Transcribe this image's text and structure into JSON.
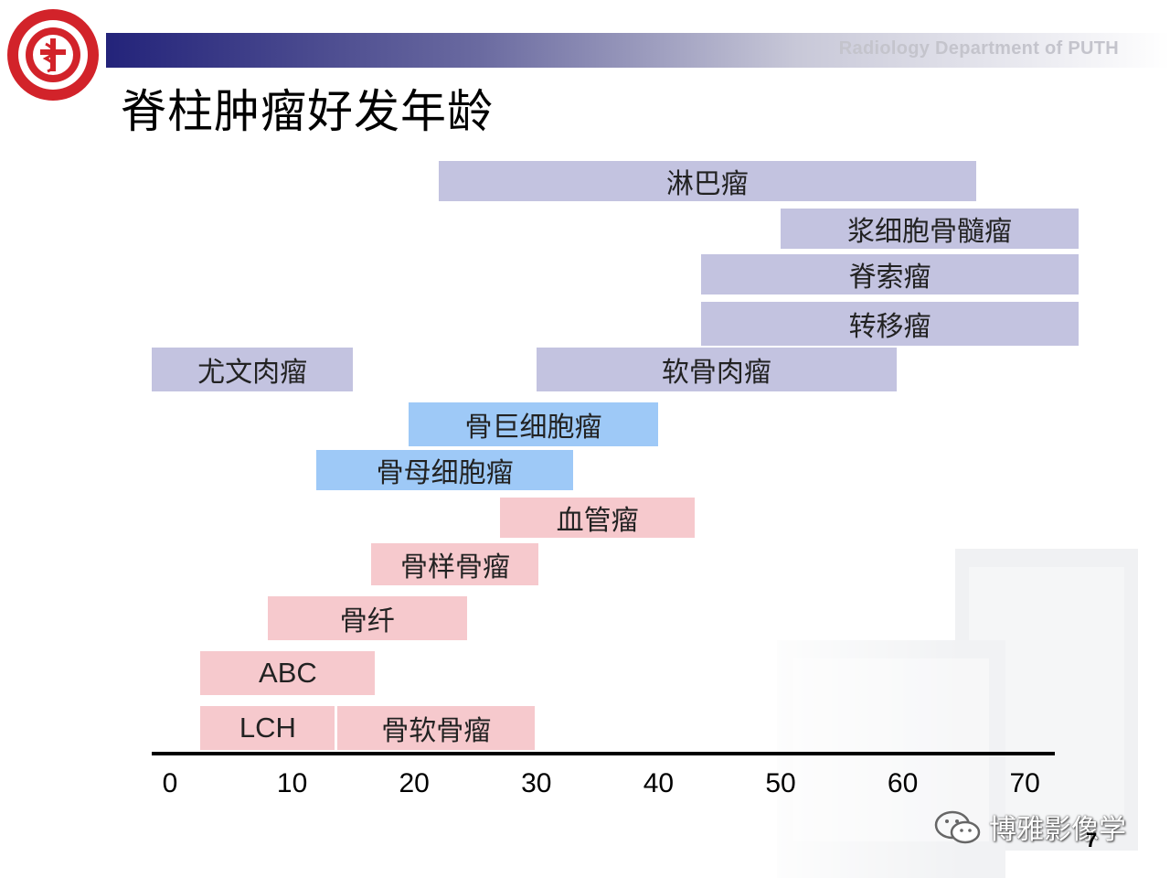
{
  "header": {
    "department": "Radiology Department of  PUTH",
    "title": "脊柱肿瘤好发年龄"
  },
  "colors": {
    "purple": "#c3c3e0",
    "blue": "#9ec9f7",
    "pink": "#f6c9cd",
    "logo_red": "#d2232a"
  },
  "chart_data": {
    "type": "range-bar",
    "x_ticks": [
      0,
      10,
      20,
      30,
      40,
      50,
      60,
      70
    ],
    "xlim": [
      -1.5,
      72.5
    ],
    "bars": [
      {
        "label": "淋巴瘤",
        "start": 22,
        "end": 66,
        "row": 0,
        "color": "purple"
      },
      {
        "label": "浆细胞骨髓瘤",
        "start": 50,
        "end": 74.5,
        "row": 1,
        "color": "purple"
      },
      {
        "label": "脊索瘤",
        "start": 43.5,
        "end": 74.5,
        "row": 2,
        "color": "purple"
      },
      {
        "label": "转移瘤",
        "start": 43.5,
        "end": 74.5,
        "row": 3,
        "color": "purple"
      },
      {
        "label": "尤文肉瘤",
        "start": -1.5,
        "end": 15,
        "row": 4,
        "color": "purple"
      },
      {
        "label": "软骨肉瘤",
        "start": 30,
        "end": 59.5,
        "row": 4,
        "color": "purple"
      },
      {
        "label": "骨巨细胞瘤",
        "start": 19.5,
        "end": 40,
        "row": 5,
        "color": "blue"
      },
      {
        "label": "骨母细胞瘤",
        "start": 12,
        "end": 33,
        "row": 6,
        "color": "blue"
      },
      {
        "label": "血管瘤",
        "start": 27,
        "end": 43,
        "row": 7,
        "color": "pink"
      },
      {
        "label": "骨样骨瘤",
        "start": 16.5,
        "end": 30.2,
        "row": 8,
        "color": "pink"
      },
      {
        "label": "骨纤",
        "start": 8,
        "end": 24.3,
        "row": 9,
        "color": "pink"
      },
      {
        "label": "ABC",
        "start": 2.5,
        "end": 16.8,
        "row": 10,
        "color": "pink"
      },
      {
        "label": "LCH",
        "start": 2.5,
        "end": 13.5,
        "row": 11,
        "color": "pink"
      },
      {
        "label": "骨软骨瘤",
        "start": 13.7,
        "end": 29.9,
        "row": 11,
        "color": "pink"
      }
    ]
  },
  "footer": {
    "watermark": "博雅影像学",
    "page_number": "7"
  }
}
